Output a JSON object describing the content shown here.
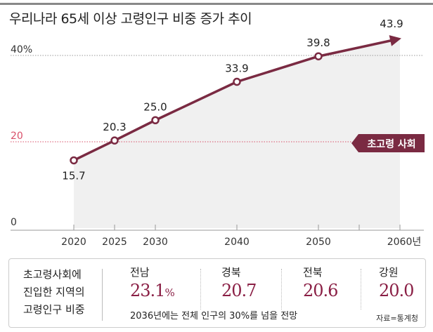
{
  "title": "우리나라 65세 이상 고령인구 비중 증가 추이",
  "chart_data": {
    "type": "line",
    "title": "우리나라 65세 이상 고령인구 비중 증가 추이",
    "x": [
      2020,
      2025,
      2030,
      2040,
      2050,
      2060
    ],
    "x_tick_labels": [
      "2020",
      "2025",
      "2030",
      "2040",
      "2050",
      "2060년"
    ],
    "values": [
      15.7,
      20.3,
      25.0,
      33.9,
      39.8,
      43.9
    ],
    "data_labels": [
      "15.7",
      "20.3",
      "25.0",
      "33.9",
      "39.8",
      "43.9"
    ],
    "y_tick_labels": [
      "0",
      "20",
      "40%"
    ],
    "ylim": [
      0,
      45
    ],
    "reference_line": {
      "value": 20,
      "label": "초고령 사회"
    },
    "colors": {
      "line": "#7a2a42",
      "ref": "#d9506a",
      "badge": "#7a2a42",
      "area": "#f0f0f0"
    }
  },
  "summary": {
    "label_lines": [
      "초고령사회에",
      "진입한 지역의",
      "고령인구 비중"
    ],
    "regions": [
      {
        "name": "전남",
        "value": "23.1",
        "unit": "%"
      },
      {
        "name": "경북",
        "value": "20.7",
        "unit": ""
      },
      {
        "name": "전북",
        "value": "20.6",
        "unit": ""
      },
      {
        "name": "강원",
        "value": "20.0",
        "unit": ""
      }
    ],
    "note": "2036년에는 전체 인구의 30%를 넘을 전망",
    "source": "자료=통계청"
  }
}
